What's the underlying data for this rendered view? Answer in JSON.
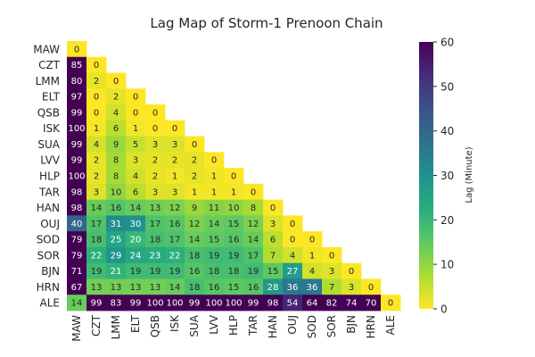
{
  "chart_data": {
    "type": "heatmap",
    "title": "Lag Map of Storm-1 Prenoon Chain",
    "row_labels": [
      "MAW",
      "CZT",
      "LMM",
      "ELT",
      "QSB",
      "ISK",
      "SUA",
      "LVV",
      "HLP",
      "TAR",
      "HAN",
      "OUJ",
      "SOD",
      "SOR",
      "BJN",
      "HRN",
      "ALE"
    ],
    "col_labels": [
      "MAW",
      "CZT",
      "LMM",
      "ELT",
      "QSB",
      "ISK",
      "SUA",
      "LVV",
      "HLP",
      "TAR",
      "HAN",
      "OUJ",
      "SOD",
      "SOR",
      "BJN",
      "HRN",
      "ALE"
    ],
    "values": [
      [
        0
      ],
      [
        85,
        0
      ],
      [
        80,
        2,
        0
      ],
      [
        97,
        0,
        2,
        0
      ],
      [
        99,
        0,
        4,
        0,
        0
      ],
      [
        100,
        1,
        6,
        1,
        0,
        0
      ],
      [
        99,
        4,
        9,
        5,
        3,
        3,
        0
      ],
      [
        99,
        2,
        8,
        3,
        2,
        2,
        2,
        0
      ],
      [
        100,
        2,
        8,
        4,
        2,
        1,
        2,
        1,
        0
      ],
      [
        98,
        3,
        10,
        6,
        3,
        3,
        1,
        1,
        1,
        0
      ],
      [
        98,
        14,
        16,
        14,
        13,
        12,
        9,
        11,
        10,
        8,
        0
      ],
      [
        40,
        17,
        31,
        30,
        17,
        16,
        12,
        14,
        15,
        12,
        3,
        0
      ],
      [
        79,
        18,
        25,
        20,
        18,
        17,
        14,
        15,
        16,
        14,
        6,
        0,
        0
      ],
      [
        79,
        22,
        29,
        24,
        23,
        22,
        18,
        19,
        19,
        17,
        7,
        4,
        1,
        0
      ],
      [
        71,
        19,
        21,
        19,
        19,
        19,
        16,
        18,
        18,
        19,
        15,
        27,
        4,
        3,
        0
      ],
      [
        67,
        13,
        13,
        13,
        13,
        14,
        18,
        16,
        15,
        16,
        28,
        36,
        36,
        7,
        3,
        0
      ],
      [
        14,
        99,
        83,
        99,
        100,
        100,
        99,
        100,
        100,
        99,
        98,
        54,
        64,
        82,
        74,
        70,
        0
      ]
    ],
    "colormap": "viridis_r",
    "vmin": 0,
    "vmax": 60,
    "colorbar": {
      "label": "Lag (Minute)",
      "ticks": [
        "0",
        "10",
        "20",
        "30",
        "40",
        "50",
        "60"
      ]
    }
  }
}
